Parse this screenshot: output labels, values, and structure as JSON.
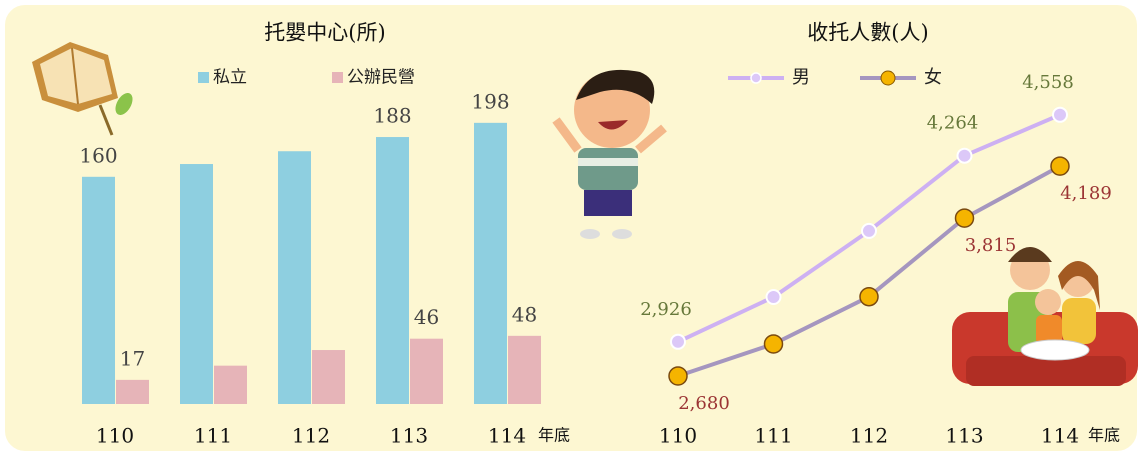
{
  "chart_data": [
    {
      "type": "bar",
      "title": "托嬰中心(所)",
      "categories": [
        "110",
        "111",
        "112",
        "113",
        "114"
      ],
      "x_note": "年底",
      "series": [
        {
          "name": "私立",
          "color": "#8ecfe0",
          "values": [
            160,
            169,
            178,
            188,
            198
          ],
          "value_labels": [
            "160",
            null,
            null,
            "188",
            "198"
          ]
        },
        {
          "name": "公辦民營",
          "color": "#e6b4b8",
          "values": [
            17,
            27,
            38,
            46,
            48
          ],
          "value_labels": [
            "17",
            null,
            null,
            "46",
            "48"
          ]
        }
      ]
    },
    {
      "type": "line",
      "title": "收托人數(人)",
      "categories": [
        "110",
        "111",
        "112",
        "113",
        "114"
      ],
      "x_note": "年底",
      "series": [
        {
          "name": "男",
          "color": "#cdb0f2",
          "marker_color": "#dcc8f8",
          "label_color": "#66783a",
          "values": [
            2926,
            3248,
            3723,
            4264,
            4558
          ],
          "value_labels": [
            "2,926",
            null,
            null,
            "4,264",
            "4,558"
          ]
        },
        {
          "name": "女",
          "color": "#a596bf",
          "marker_color": "#f5b400",
          "label_color": "#9b3434",
          "values": [
            2680,
            2910,
            3250,
            3815,
            4189
          ],
          "value_labels": [
            "2,680",
            null,
            null,
            "3,815",
            "4,189"
          ]
        }
      ]
    }
  ]
}
